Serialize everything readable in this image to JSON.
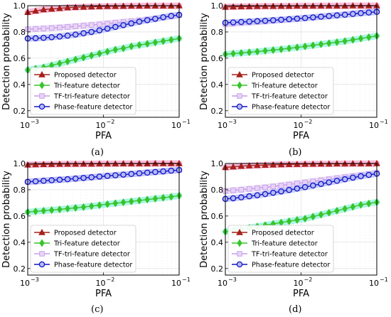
{
  "colors": {
    "proposed": "#a6201a",
    "proposed_band": "#f5a6cf",
    "tri": "#38c42a",
    "tri_band": "#8ef2d8",
    "tf": "#c79be6",
    "tf_band": "#e6d4f7",
    "phase": "#1414c8",
    "phase_band": "#b4bcf4"
  },
  "chart_data": [
    {
      "type": "line",
      "caption": "(a)",
      "xlabel": "PFA",
      "ylabel": "Detection probability",
      "xscale": "log",
      "xlim": [
        0.001,
        0.1
      ],
      "ylim": [
        0.15,
        1.0
      ],
      "yticks": [
        "0.2",
        "0.4",
        "0.6",
        "0.8",
        "1.0"
      ],
      "xticks": [
        "10",
        "10",
        "10"
      ],
      "xtick_exponents": [
        "−3",
        "−2",
        "−1"
      ],
      "grid": true,
      "legend_position": "lower-left",
      "x": [
        0.001,
        0.00127,
        0.00162,
        0.00207,
        0.00264,
        0.00336,
        0.00428,
        0.00546,
        0.00695,
        0.00886,
        0.01129,
        0.01438,
        0.01833,
        0.02336,
        0.02976,
        0.03793,
        0.04833,
        0.06158,
        0.07848,
        0.1
      ],
      "series": [
        {
          "name": "Proposed detector",
          "marker": "triangle",
          "values": [
            0.95,
            0.96,
            0.97,
            0.975,
            0.98,
            0.985,
            0.988,
            0.99,
            0.992,
            0.994,
            0.995,
            0.996,
            0.997,
            0.998,
            0.998,
            0.999,
            0.999,
            0.999,
            0.999,
            1.0
          ]
        },
        {
          "name": "Tri-feature detector",
          "marker": "diamond",
          "values": [
            0.51,
            0.52,
            0.53,
            0.545,
            0.56,
            0.575,
            0.59,
            0.605,
            0.62,
            0.635,
            0.65,
            0.665,
            0.675,
            0.69,
            0.7,
            0.71,
            0.72,
            0.73,
            0.74,
            0.75
          ]
        },
        {
          "name": "TF-tri-feature detector",
          "marker": "square",
          "values": [
            0.82,
            0.823,
            0.826,
            0.83,
            0.834,
            0.838,
            0.843,
            0.848,
            0.853,
            0.858,
            0.864,
            0.87,
            0.876,
            0.882,
            0.888,
            0.895,
            0.902,
            0.91,
            0.918,
            0.926
          ]
        },
        {
          "name": "Phase-feature detector",
          "marker": "circle",
          "values": [
            0.75,
            0.752,
            0.755,
            0.76,
            0.765,
            0.772,
            0.78,
            0.79,
            0.8,
            0.812,
            0.825,
            0.838,
            0.852,
            0.865,
            0.878,
            0.89,
            0.9,
            0.912,
            0.922,
            0.93
          ]
        }
      ]
    },
    {
      "type": "line",
      "caption": "(b)",
      "xlabel": "PFA",
      "ylabel": "Detection probability",
      "xscale": "log",
      "xlim": [
        0.001,
        0.1
      ],
      "ylim": [
        0.15,
        1.0
      ],
      "yticks": [
        "0.2",
        "0.4",
        "0.6",
        "0.8",
        "1.0"
      ],
      "xticks": [
        "10",
        "10",
        "10"
      ],
      "xtick_exponents": [
        "−3",
        "−2",
        "−1"
      ],
      "grid": true,
      "legend_position": "lower-left",
      "x": [
        0.001,
        0.00127,
        0.00162,
        0.00207,
        0.00264,
        0.00336,
        0.00428,
        0.00546,
        0.00695,
        0.00886,
        0.01129,
        0.01438,
        0.01833,
        0.02336,
        0.02976,
        0.03793,
        0.04833,
        0.06158,
        0.07848,
        0.1
      ],
      "series": [
        {
          "name": "Proposed detector",
          "marker": "triangle",
          "values": [
            0.99,
            0.992,
            0.993,
            0.994,
            0.995,
            0.996,
            0.996,
            0.997,
            0.997,
            0.998,
            0.998,
            0.998,
            0.999,
            0.999,
            0.999,
            0.999,
            1.0,
            1.0,
            1.0,
            1.0
          ]
        },
        {
          "name": "Tri-feature detector",
          "marker": "diamond",
          "values": [
            0.63,
            0.635,
            0.64,
            0.645,
            0.65,
            0.656,
            0.662,
            0.668,
            0.675,
            0.682,
            0.69,
            0.698,
            0.706,
            0.714,
            0.722,
            0.73,
            0.74,
            0.75,
            0.76,
            0.77
          ]
        },
        {
          "name": "TF-tri-feature detector",
          "marker": "square",
          "values": [
            0.86,
            0.864,
            0.868,
            0.872,
            0.876,
            0.88,
            0.885,
            0.89,
            0.895,
            0.9,
            0.905,
            0.91,
            0.916,
            0.922,
            0.928,
            0.934,
            0.94,
            0.946,
            0.952,
            0.958
          ]
        },
        {
          "name": "Phase-feature detector",
          "marker": "circle",
          "values": [
            0.87,
            0.873,
            0.876,
            0.879,
            0.882,
            0.885,
            0.889,
            0.893,
            0.897,
            0.901,
            0.906,
            0.911,
            0.916,
            0.921,
            0.926,
            0.931,
            0.937,
            0.943,
            0.948,
            0.953
          ]
        }
      ]
    },
    {
      "type": "line",
      "caption": "(c)",
      "xlabel": "PFA",
      "ylabel": "Detection probability",
      "xscale": "log",
      "xlim": [
        0.001,
        0.1
      ],
      "ylim": [
        0.15,
        1.0
      ],
      "yticks": [
        "0.2",
        "0.4",
        "0.6",
        "0.8",
        "1.0"
      ],
      "xticks": [
        "10",
        "10",
        "10"
      ],
      "xtick_exponents": [
        "−3",
        "−2",
        "−1"
      ],
      "grid": true,
      "legend_position": "lower-left",
      "x": [
        0.001,
        0.00127,
        0.00162,
        0.00207,
        0.00264,
        0.00336,
        0.00428,
        0.00546,
        0.00695,
        0.00886,
        0.01129,
        0.01438,
        0.01833,
        0.02336,
        0.02976,
        0.03793,
        0.04833,
        0.06158,
        0.07848,
        0.1
      ],
      "series": [
        {
          "name": "Proposed detector",
          "marker": "triangle",
          "values": [
            0.99,
            0.992,
            0.993,
            0.994,
            0.995,
            0.996,
            0.996,
            0.997,
            0.997,
            0.998,
            0.998,
            0.998,
            0.999,
            0.999,
            0.999,
            0.999,
            1.0,
            1.0,
            1.0,
            1.0
          ]
        },
        {
          "name": "Tri-feature detector",
          "marker": "diamond",
          "values": [
            0.63,
            0.635,
            0.64,
            0.645,
            0.65,
            0.656,
            0.662,
            0.668,
            0.675,
            0.682,
            0.69,
            0.697,
            0.704,
            0.711,
            0.718,
            0.725,
            0.732,
            0.739,
            0.746,
            0.755
          ]
        },
        {
          "name": "TF-tri-feature detector",
          "marker": "square",
          "values": [
            0.86,
            0.864,
            0.868,
            0.872,
            0.876,
            0.88,
            0.885,
            0.89,
            0.895,
            0.9,
            0.905,
            0.91,
            0.915,
            0.92,
            0.925,
            0.93,
            0.935,
            0.94,
            0.945,
            0.95
          ]
        },
        {
          "name": "Phase-feature detector",
          "marker": "circle",
          "values": [
            0.86,
            0.864,
            0.868,
            0.872,
            0.876,
            0.88,
            0.885,
            0.89,
            0.895,
            0.9,
            0.905,
            0.91,
            0.915,
            0.92,
            0.925,
            0.93,
            0.935,
            0.94,
            0.945,
            0.95
          ]
        }
      ]
    },
    {
      "type": "line",
      "caption": "(d)",
      "xlabel": "PFA",
      "ylabel": "Detection probability",
      "xscale": "log",
      "xlim": [
        0.001,
        0.1
      ],
      "ylim": [
        0.15,
        1.0
      ],
      "yticks": [
        "0.2",
        "0.4",
        "0.6",
        "0.8",
        "1.0"
      ],
      "xticks": [
        "10",
        "10",
        "10"
      ],
      "xtick_exponents": [
        "−3",
        "−2",
        "−1"
      ],
      "grid": true,
      "legend_position": "lower-left",
      "x": [
        0.001,
        0.00127,
        0.00162,
        0.00207,
        0.00264,
        0.00336,
        0.00428,
        0.00546,
        0.00695,
        0.00886,
        0.01129,
        0.01438,
        0.01833,
        0.02336,
        0.02976,
        0.03793,
        0.04833,
        0.06158,
        0.07848,
        0.1
      ],
      "series": [
        {
          "name": "Proposed detector",
          "marker": "triangle",
          "values": [
            0.97,
            0.975,
            0.98,
            0.983,
            0.986,
            0.988,
            0.99,
            0.992,
            0.993,
            0.994,
            0.995,
            0.996,
            0.997,
            0.997,
            0.998,
            0.998,
            0.999,
            0.999,
            0.999,
            1.0
          ]
        },
        {
          "name": "Tri-feature detector",
          "marker": "diamond",
          "values": [
            0.48,
            0.49,
            0.5,
            0.51,
            0.52,
            0.53,
            0.54,
            0.55,
            0.56,
            0.57,
            0.58,
            0.595,
            0.61,
            0.625,
            0.64,
            0.655,
            0.67,
            0.685,
            0.695,
            0.705
          ]
        },
        {
          "name": "TF-tri-feature detector",
          "marker": "square",
          "values": [
            0.79,
            0.795,
            0.8,
            0.806,
            0.812,
            0.818,
            0.825,
            0.832,
            0.84,
            0.848,
            0.856,
            0.864,
            0.872,
            0.88,
            0.888,
            0.896,
            0.904,
            0.912,
            0.92,
            0.928
          ]
        },
        {
          "name": "Phase-feature detector",
          "marker": "circle",
          "values": [
            0.73,
            0.735,
            0.742,
            0.75,
            0.758,
            0.767,
            0.777,
            0.787,
            0.798,
            0.809,
            0.82,
            0.832,
            0.844,
            0.856,
            0.868,
            0.88,
            0.892,
            0.903,
            0.913,
            0.922
          ]
        }
      ]
    }
  ]
}
